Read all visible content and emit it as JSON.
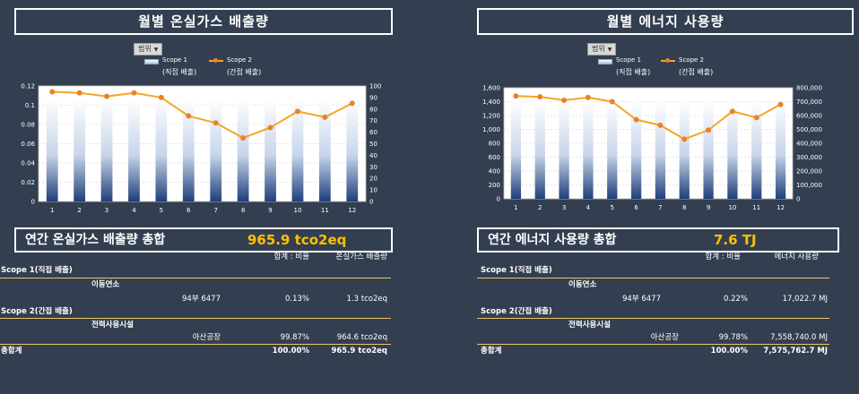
{
  "colors": {
    "background": "#333f50",
    "line": "#f5a623",
    "marker": "#e8822a",
    "highlight": "#ffc000"
  },
  "ghg": {
    "title": "월별 온실가스 배출량",
    "filter_label": "범위",
    "legend": [
      {
        "name": "Scope 1",
        "sub": "(직접 배출)"
      },
      {
        "name": "Scope 2",
        "sub": "(간접 배출)"
      }
    ],
    "summary_title": "연간 온실가스 배출량 총합",
    "summary_value": "965.9 tco2eq",
    "table": {
      "hdr_ratio": "합계 : 비율",
      "hdr_value": "온실가스 배출량",
      "scope1": "Scope 1(직접 배출)",
      "scope1_cat": "이동연소",
      "scope1_item": "94부 6477",
      "scope1_pct": "0.13%",
      "scope1_val": "1.3 tco2eq",
      "scope2": "Scope 2(간접 배출)",
      "scope2_cat": "전력사용시설",
      "scope2_item": "아산공장",
      "scope2_pct": "99.87%",
      "scope2_val": "964.6 tco2eq",
      "total_label": "총합계",
      "total_pct": "100.00%",
      "total_val": "965.9 tco2eq"
    }
  },
  "energy": {
    "title": "월별 에너지 사용량",
    "filter_label": "범위",
    "legend": [
      {
        "name": "Scope 1",
        "sub": "(직접 배출)"
      },
      {
        "name": "Scope 2",
        "sub": "(간접 배출)"
      }
    ],
    "summary_title": "연간 에너지 사용량 총합",
    "summary_value": "7.6 TJ",
    "table": {
      "hdr_ratio": "합계 : 비율",
      "hdr_value": "에너지 사용량",
      "scope1": "Scope 1(직접 배출)",
      "scope1_cat": "이동연소",
      "scope1_item": "94부 6477",
      "scope1_pct": "0.22%",
      "scope1_val": "17,022.7 MJ",
      "scope2": "Scope 2(간접 배출)",
      "scope2_cat": "전력사용시설",
      "scope2_item": "아산공장",
      "scope2_pct": "99.78%",
      "scope2_val": "7,558,740.0 MJ",
      "total_label": "총합계",
      "total_pct": "100.00%",
      "total_val": "7,575,762.7 MJ"
    }
  },
  "chart_data": [
    {
      "type": "bar",
      "categories": [
        "1",
        "2",
        "3",
        "4",
        "5",
        "6",
        "7",
        "8",
        "9",
        "10",
        "11",
        "12"
      ],
      "series": [
        {
          "name": "Scope 1",
          "axis": "left",
          "values": [
            0.107,
            0.107,
            0.107,
            0.107,
            0.107,
            0.107,
            0.107,
            0.107,
            0.107,
            0.107,
            0.107,
            0.107
          ]
        },
        {
          "name": "Scope 2",
          "axis": "right",
          "type": "line",
          "values": [
            95,
            94,
            91,
            94,
            90,
            74,
            68,
            55,
            64,
            78,
            73,
            85
          ]
        }
      ],
      "ylim": [
        0,
        0.12
      ],
      "y_ticks": [
        "0",
        "0.02",
        "0.04",
        "0.06",
        "0.08",
        "0.1",
        "0.12"
      ],
      "y2lim": [
        0,
        100
      ],
      "y2_ticks": [
        "0",
        "10",
        "20",
        "30",
        "40",
        "50",
        "60",
        "70",
        "80",
        "90",
        "100"
      ]
    },
    {
      "type": "bar",
      "categories": [
        "1",
        "2",
        "3",
        "4",
        "5",
        "6",
        "7",
        "8",
        "9",
        "10",
        "11",
        "12"
      ],
      "series": [
        {
          "name": "Scope 1",
          "axis": "left",
          "values": [
            1400,
            1400,
            1400,
            1400,
            1400,
            1400,
            1400,
            1400,
            1400,
            1400,
            1400,
            1400
          ]
        },
        {
          "name": "Scope 2",
          "axis": "right",
          "type": "line",
          "values": [
            740000,
            735000,
            710000,
            730000,
            700000,
            570000,
            530000,
            430000,
            495000,
            630000,
            585000,
            680000
          ]
        }
      ],
      "ylim": [
        0,
        1600
      ],
      "y_ticks": [
        "0",
        "200",
        "400",
        "600",
        "800",
        "1,000",
        "1,200",
        "1,400",
        "1,600"
      ],
      "y2lim": [
        0,
        800000
      ],
      "y2_ticks": [
        "0",
        "100,000",
        "200,000",
        "300,000",
        "400,000",
        "500,000",
        "600,000",
        "700,000",
        "800,000"
      ]
    }
  ]
}
